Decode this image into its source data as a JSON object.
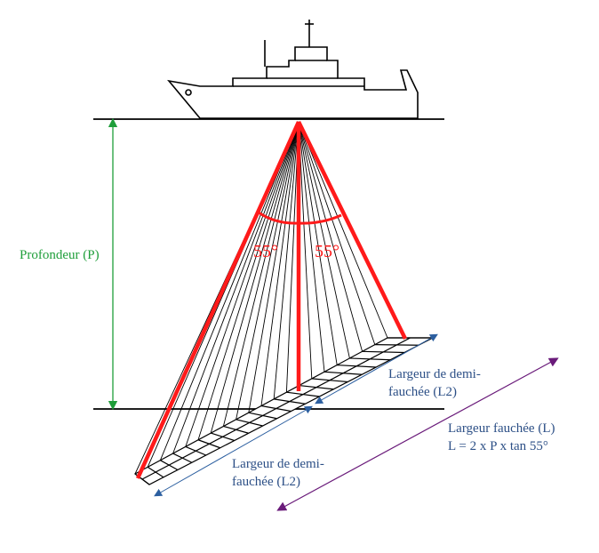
{
  "labels": {
    "depth": "Profondeur (P)",
    "angle_left": "55°",
    "angle_right": "55°",
    "half_swath_right_1": "Largeur de demi-",
    "half_swath_right_2": "fauchée (L2)",
    "half_swath_left_1": "Largeur de demi-",
    "half_swath_left_2": "fauchée (L2)",
    "swath_1": "Largeur fauchée (L)",
    "swath_2": "L = 2 x P x tan 55°"
  },
  "colors": {
    "depth_arrow": "#1f9e3a",
    "beam_red": "#ff1a1a",
    "half_swath_arrow": "#2c5fa0",
    "swath_arrow": "#6a1b7a",
    "outline": "#000000"
  }
}
